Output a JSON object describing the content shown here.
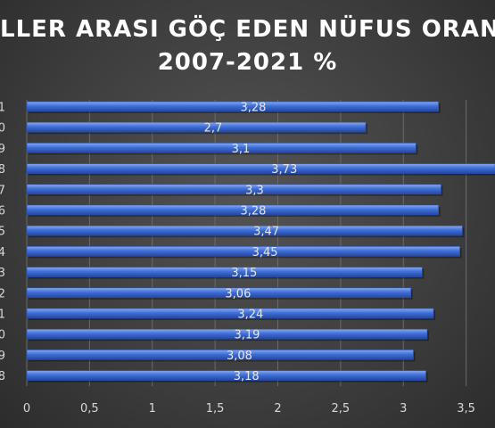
{
  "chart_data": {
    "type": "bar",
    "orientation": "horizontal",
    "title_line1": "LLER ARASI GÖÇ EDEN NÜFUS ORAN",
    "title_line2": "2007-2021 %",
    "categories": [
      "1",
      "0",
      "9",
      "8",
      "7",
      "6",
      "5",
      "4",
      "3",
      "2",
      "1",
      "0",
      "9",
      "8"
    ],
    "values": [
      3.28,
      2.7,
      3.1,
      3.73,
      3.3,
      3.28,
      3.47,
      3.45,
      3.15,
      3.06,
      3.24,
      3.19,
      3.08,
      3.18
    ],
    "data_labels": [
      "3,28",
      "2,7",
      "3,1",
      "3,73",
      "3,3",
      "3,28",
      "3,47",
      "3,45",
      "3,15",
      "3,06",
      "3,24",
      "3,19",
      "3,08",
      "3,18"
    ],
    "x_ticks": [
      0,
      0.5,
      1,
      1.5,
      2,
      2.5,
      3,
      3.5
    ],
    "x_tick_labels": [
      "0",
      "0,5",
      "1",
      "1,5",
      "2",
      "2,5",
      "3",
      "3,5"
    ],
    "xlim": [
      0,
      3.73
    ],
    "grid": "vertical",
    "bar_color": "#3f6fd8"
  }
}
